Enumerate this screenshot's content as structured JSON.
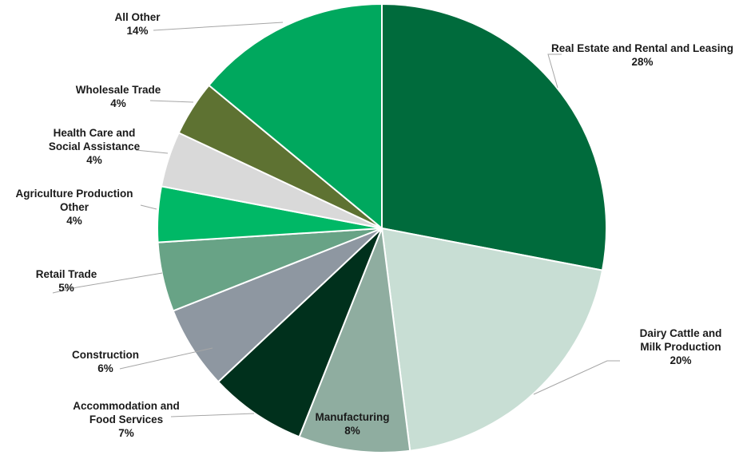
{
  "chart_data": {
    "type": "pie",
    "title": "",
    "start_angle_deg": 0,
    "direction": "clockwise",
    "legend": "none",
    "slices": [
      {
        "label_lines": [
          "Real Estate and Rental and Leasing"
        ],
        "value": 28,
        "value_label": "28%",
        "color": "#006b3c"
      },
      {
        "label_lines": [
          "Dairy Cattle and",
          "Milk Production"
        ],
        "value": 20,
        "value_label": "20%",
        "color": "#c8ded4"
      },
      {
        "label_lines": [
          "Manufacturing"
        ],
        "value": 8,
        "value_label": "8%",
        "color": "#8fada0"
      },
      {
        "label_lines": [
          "Accommodation and",
          "Food Services"
        ],
        "value": 7,
        "value_label": "7%",
        "color": "#00301c"
      },
      {
        "label_lines": [
          "Construction"
        ],
        "value": 6,
        "value_label": "6%",
        "color": "#8e97a1"
      },
      {
        "label_lines": [
          "Retail Trade"
        ],
        "value": 5,
        "value_label": "5%",
        "color": "#68a386"
      },
      {
        "label_lines": [
          "Agriculture Production",
          "Other"
        ],
        "value": 4,
        "value_label": "4%",
        "color": "#00b866"
      },
      {
        "label_lines": [
          "Health Care and",
          "Social Assistance"
        ],
        "value": 4,
        "value_label": "4%",
        "color": "#d9d9d9"
      },
      {
        "label_lines": [
          "Wholesale Trade"
        ],
        "value": 4,
        "value_label": "4%",
        "color": "#5e7232"
      },
      {
        "label_lines": [
          "All Other"
        ],
        "value": 14,
        "value_label": "14%",
        "color": "#00a85e"
      }
    ]
  }
}
